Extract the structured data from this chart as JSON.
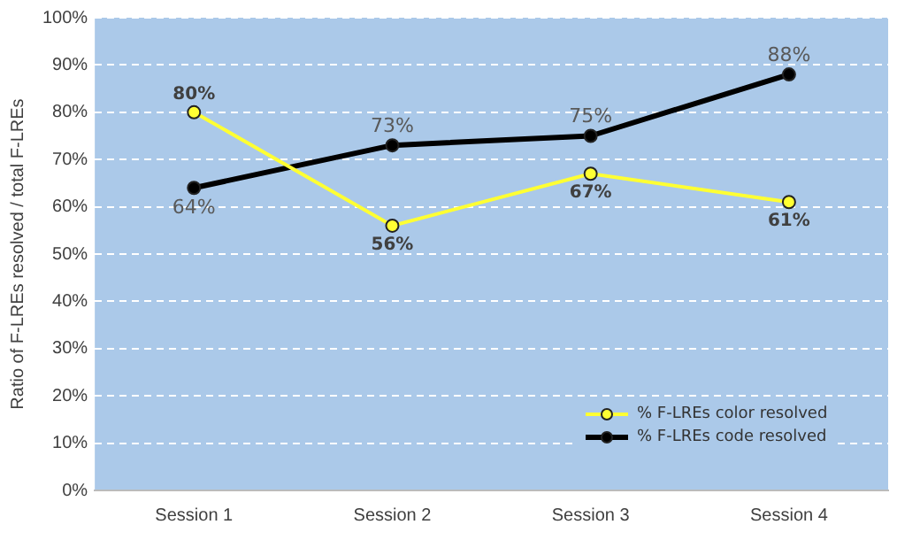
{
  "chart_data": {
    "type": "line",
    "ylabel": "Ratio of F-LREs resolved / total F-LREs",
    "categories": [
      "Session 1",
      "Session 2",
      "Session 3",
      "Session 4"
    ],
    "series": [
      {
        "name": "% F-LREs color resolved",
        "color": "#ffff33",
        "values": [
          80,
          56,
          67,
          61
        ],
        "value_labels": [
          "80%",
          "56%",
          "67%",
          "61%"
        ]
      },
      {
        "name": "% F-LREs code resolved",
        "color": "#000000",
        "values": [
          64,
          73,
          75,
          88
        ],
        "value_labels": [
          "64%",
          "73%",
          "75%",
          "88%"
        ]
      }
    ],
    "ylim": [
      0,
      100
    ],
    "yticks": [
      {
        "value": 0,
        "label": "0%"
      },
      {
        "value": 10,
        "label": "10%"
      },
      {
        "value": 20,
        "label": "20%"
      },
      {
        "value": 30,
        "label": "30%"
      },
      {
        "value": 40,
        "label": "40%"
      },
      {
        "value": 50,
        "label": "50%"
      },
      {
        "value": 60,
        "label": "60%"
      },
      {
        "value": 70,
        "label": "70%"
      },
      {
        "value": 80,
        "label": "80%"
      },
      {
        "value": 90,
        "label": "90%"
      },
      {
        "value": 100,
        "label": "100%"
      }
    ],
    "grid": "y",
    "legend": "bottom right",
    "marker": "circle",
    "line_style": "solid"
  }
}
